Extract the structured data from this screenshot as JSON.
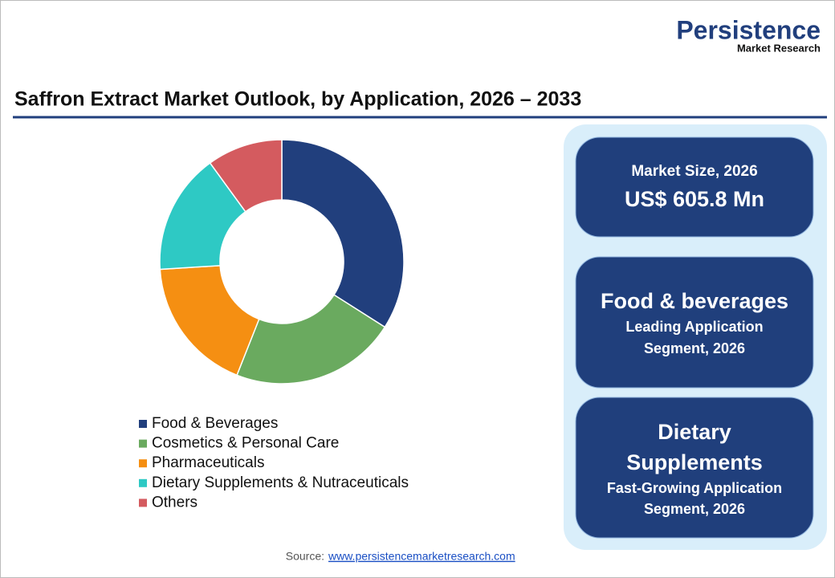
{
  "logo": {
    "name": "Persistence",
    "tagline": "Market Research"
  },
  "chart_data": {
    "type": "donut",
    "title": "Saffron Extract Market Outlook, by Application, 2026 – 2033",
    "categories": [
      "Food & Beverages",
      "Cosmetics & Personal Care",
      "Pharmaceuticals",
      "Dietary Supplements & Nutraceuticals",
      "Others"
    ],
    "values": [
      34,
      22,
      18,
      16,
      10
    ],
    "colors": [
      "#213f7d",
      "#6aaa5f",
      "#f58f12",
      "#2ec9c4",
      "#d45b5f"
    ]
  },
  "cards": [
    {
      "label": "Market Size, 2026",
      "value": "US$ 605.8 Mn"
    },
    {
      "headline": [
        "Food & beverages"
      ],
      "caption": [
        "Leading Application",
        "Segment, 2026"
      ]
    },
    {
      "headline": [
        "Dietary",
        "Supplements"
      ],
      "caption": [
        "Fast-Growing Application",
        "Segment, 2026"
      ]
    }
  ],
  "source": {
    "label": "Source:",
    "link": "www.persistencemarketresearch.com"
  }
}
